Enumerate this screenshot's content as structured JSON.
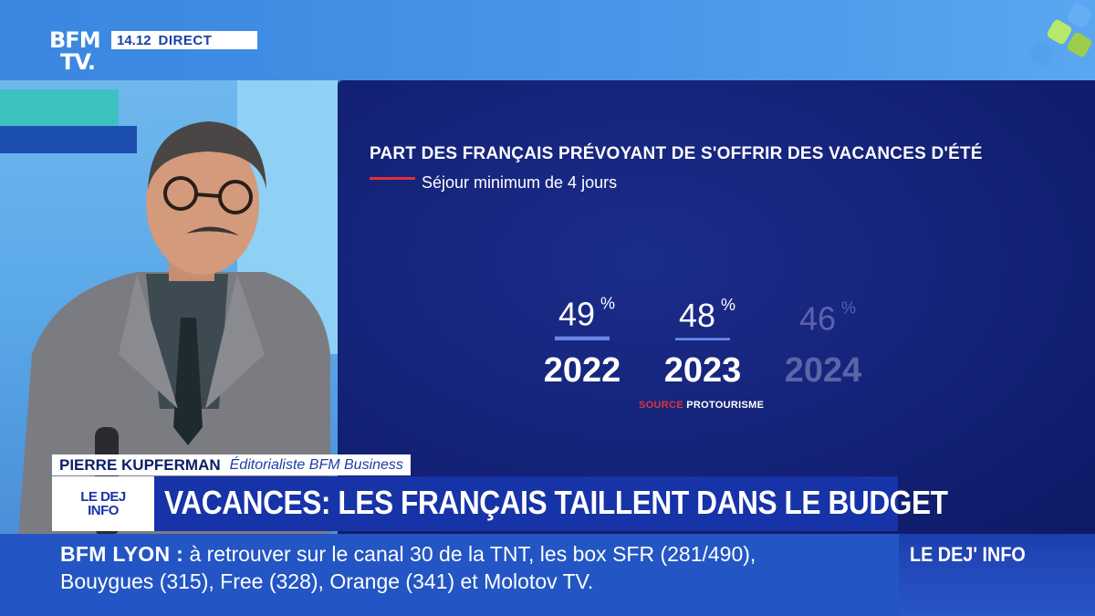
{
  "channel": {
    "logo_line1": "BFM",
    "logo_line2": "TV.",
    "time": "14.12",
    "live_label": "DIRECT"
  },
  "lower_third": {
    "guest_name": "PIERRE KUPFERMAN",
    "guest_role": "Éditorialiste BFM Business",
    "show_line1": "LE DEJ",
    "show_line2": "INFO",
    "headline": "VACANCES: LES FRANÇAIS TAILLENT DANS LE BUDGET"
  },
  "ticker": {
    "city": "BFM LYON :",
    "line1": "à retrouver sur le canal 30 de la TNT, les box SFR (281/490),",
    "line2": "Bouygues (315), Free (328), Orange (341) et Molotov TV.",
    "brand": "LE DEJ' INFO"
  },
  "colors": {
    "accent_red": "#e0313a",
    "bar_active": "#6a86ea",
    "bar_dim": "#5a74de",
    "label_dim": "#5c63a8"
  },
  "chart_data": {
    "type": "bar",
    "title": "PART DES FRANÇAIS PRÉVOYANT DE S'OFFRIR DES VACANCES D'ÉTÉ",
    "subtitle": "Séjour minimum de 4 jours",
    "categories": [
      "2022",
      "2023",
      "2024"
    ],
    "values": [
      49,
      48,
      46
    ],
    "unit": "%",
    "highlighted": [
      true,
      true,
      false
    ],
    "source_label": "SOURCE",
    "source_name": "PROTOURISME",
    "grid": false,
    "legend": "none"
  }
}
